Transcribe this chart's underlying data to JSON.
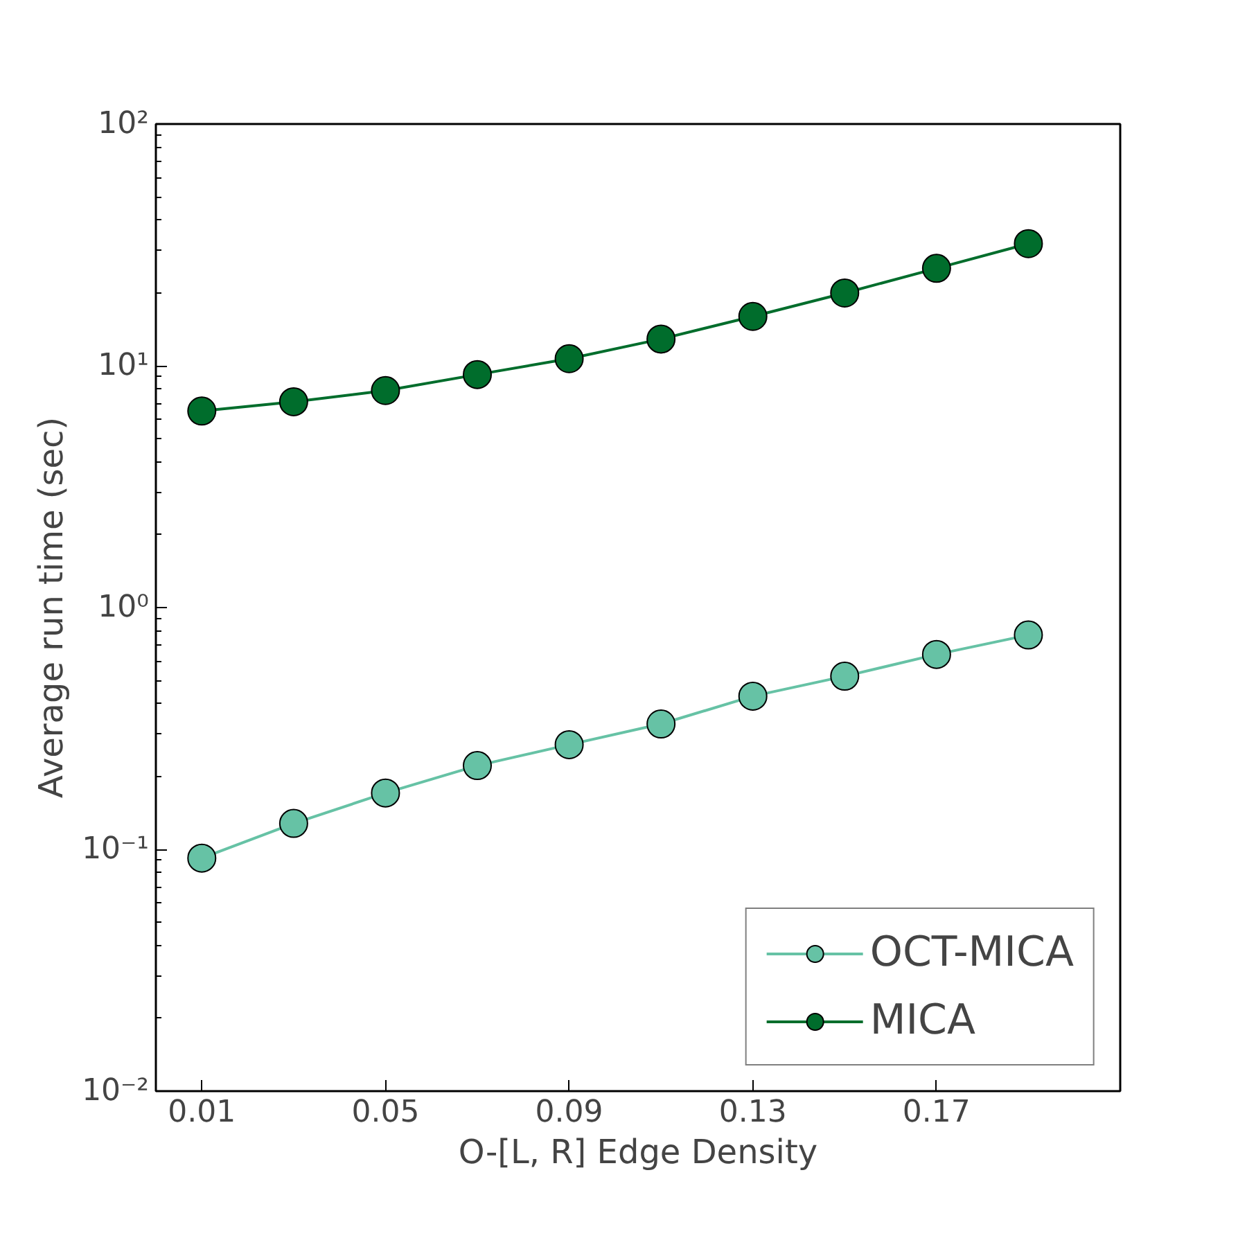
{
  "chart_data": {
    "type": "line",
    "xlabel": "O-[L, R] Edge Density",
    "ylabel": "Average run time (sec)",
    "x": [
      0.01,
      0.03,
      0.05,
      0.07,
      0.09,
      0.11,
      0.13,
      0.15,
      0.17,
      0.19
    ],
    "series": [
      {
        "name": "OCT-MICA",
        "color": "#66c2a5",
        "values": [
          0.092,
          0.128,
          0.171,
          0.222,
          0.271,
          0.33,
          0.43,
          0.52,
          0.64,
          0.77
        ]
      },
      {
        "name": "MICA",
        "color": "#006d2c",
        "values": [
          6.5,
          7.1,
          7.9,
          9.2,
          10.7,
          12.9,
          16,
          20,
          25.3,
          32
        ]
      }
    ],
    "xlim": [
      0,
      0.21
    ],
    "xticks": [
      0.01,
      0.05,
      0.09,
      0.13,
      0.17
    ],
    "ylim": [
      0.01,
      100
    ],
    "yticks": [
      {
        "value": 0.01,
        "label": "10⁻²"
      },
      {
        "value": 0.1,
        "label": "10⁻¹"
      },
      {
        "value": 1,
        "label": "10⁰"
      },
      {
        "value": 10,
        "label": "10¹"
      },
      {
        "value": 100,
        "label": "10²"
      }
    ],
    "log": "y",
    "grid": false,
    "legend": "bottom right",
    "marker": "circle",
    "line_style": "solid"
  }
}
